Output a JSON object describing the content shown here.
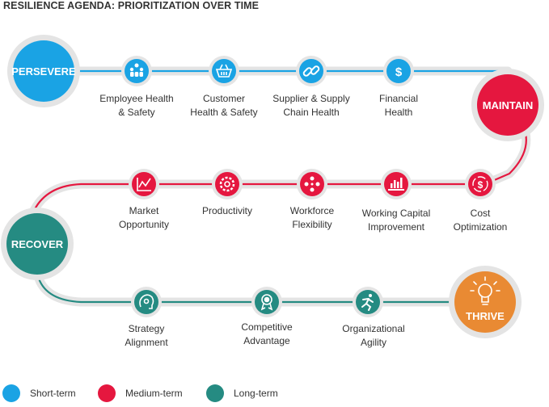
{
  "title": "RESILIENCE AGENDA: PRIORITIZATION OVER TIME",
  "colors": {
    "short_term": "#1aa3e4",
    "medium_term": "#e5173f",
    "long_term": "#258b82",
    "thrive": "#e98a33",
    "track": "#e4e4e4"
  },
  "stages": {
    "persevere": "PERSEVERE",
    "maintain": "MAINTAIN",
    "recover": "RECOVER",
    "thrive": "THRIVE"
  },
  "row1": [
    {
      "label": "Employee Health\n& Safety",
      "icon": "people-group-icon"
    },
    {
      "label": "Customer\nHealth & Safety",
      "icon": "shopping-basket-icon"
    },
    {
      "label": "Supplier & Supply\nChain Health",
      "icon": "chain-link-icon"
    },
    {
      "label": "Financial\nHealth",
      "icon": "dollar-hand-icon"
    }
  ],
  "row2": [
    {
      "label": "Market\nOpportunity",
      "icon": "line-chart-icon"
    },
    {
      "label": "Productivity",
      "icon": "gear-icon"
    },
    {
      "label": "Workforce\nFlexibility",
      "icon": "team-icon"
    },
    {
      "label": "Working Capital\nImprovement",
      "icon": "laptop-chart-icon"
    },
    {
      "label": "Cost\nOptimization",
      "icon": "dollar-cycle-icon"
    }
  ],
  "row3": [
    {
      "label": "Strategy\nAlignment",
      "icon": "brain-gear-icon"
    },
    {
      "label": "Competitive\nAdvantage",
      "icon": "award-medal-icon"
    },
    {
      "label": "Organizational\nAgility",
      "icon": "runner-icon"
    }
  ],
  "legend": [
    {
      "label": "Short-term",
      "color": "#1aa3e4"
    },
    {
      "label": "Medium-term",
      "color": "#e5173f"
    },
    {
      "label": "Long-term",
      "color": "#258b82"
    }
  ]
}
